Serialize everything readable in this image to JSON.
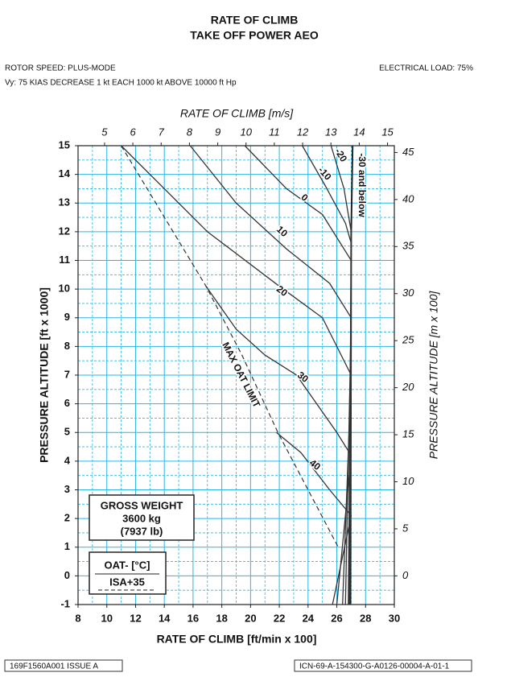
{
  "chart_data": {
    "type": "line",
    "title": "RATE OF CLIMB",
    "subtitle": "TAKE OFF POWER AEO",
    "notes": {
      "rotor": "ROTOR SPEED: PLUS-MODE",
      "electrical": "ELECTRICAL LOAD: 75%",
      "vy": "Vy: 75 KIAS DECREASE 1 kt EACH 1000 kt ABOVE 10000 ft Hp"
    },
    "xlabel": "RATE OF CLIMB [ft/min x 100]",
    "x2label": "RATE OF CLIMB [m/s]",
    "ylabel": "PRESSURE ALTITUDE [ft x 1000]",
    "y2label": "PRESSURE ALTITUDE [m x 100]",
    "xlim": [
      8,
      30
    ],
    "xticks": [
      8,
      10,
      12,
      14,
      16,
      18,
      20,
      22,
      24,
      26,
      28,
      30
    ],
    "x2lim": [
      4.064,
      15.24
    ],
    "x2ticks": [
      5,
      6,
      7,
      8,
      9,
      10,
      11,
      12,
      13,
      14,
      15
    ],
    "ylim": [
      -1,
      15
    ],
    "yticks": [
      -1,
      0,
      1,
      2,
      3,
      4,
      5,
      6,
      7,
      8,
      9,
      10,
      11,
      12,
      13,
      14,
      15
    ],
    "y2lim": [
      -3.048,
      45.72
    ],
    "y2ticks": [
      0,
      5,
      10,
      15,
      20,
      25,
      30,
      35,
      40,
      45
    ],
    "grid": true,
    "grid_color": "#29b6e6",
    "minor_divisions": 2,
    "series": [
      {
        "name": "-30 and below",
        "color": "#222222",
        "x": [
          27.1,
          27.0,
          26.95
        ],
        "y": [
          15,
          12,
          -1
        ]
      },
      {
        "name": "-20",
        "color": "#333333",
        "x": [
          25.6,
          26.5,
          27.0,
          26.9
        ],
        "y": [
          15,
          13.5,
          12.0,
          -1
        ]
      },
      {
        "name": "-10",
        "color": "#333333",
        "x": [
          23.6,
          25.2,
          26.6,
          27.0,
          26.85
        ],
        "y": [
          15,
          13.6,
          12.3,
          11.6,
          -1
        ]
      },
      {
        "name": "0",
        "color": "#333333",
        "x": [
          19.6,
          22.5,
          25.0,
          27.0,
          26.8
        ],
        "y": [
          15,
          13.5,
          12.6,
          11.0,
          -1
        ]
      },
      {
        "name": "10",
        "color": "#333333",
        "x": [
          15.8,
          19.0,
          22.5,
          25.5,
          27.0,
          26.6
        ],
        "y": [
          15,
          13.0,
          11.4,
          10.2,
          9.0,
          -1
        ]
      },
      {
        "name": "20",
        "color": "#333333",
        "x": [
          11.0,
          14.0,
          17.0,
          22.0,
          25.0,
          27.0,
          26.4
        ],
        "y": [
          15,
          13.5,
          12.0,
          10.1,
          9.0,
          7.0,
          -1
        ]
      },
      {
        "name": "30",
        "color": "#333333",
        "x": [
          16.9,
          19.0,
          21.0,
          23.2,
          26.0,
          27.0,
          26.0
        ],
        "y": [
          10.1,
          8.6,
          7.7,
          7.0,
          5.0,
          4.2,
          -1
        ]
      },
      {
        "name": "40",
        "color": "#333333",
        "x": [
          21.8,
          23.5,
          25.5,
          27.0,
          25.7
        ],
        "y": [
          5.0,
          4.3,
          3.0,
          2.1,
          -1
        ]
      }
    ],
    "limit_line": {
      "label": "MAX OAT LIMIT",
      "color": "#333333",
      "x": [
        11.0,
        16.9,
        19.4,
        21.9,
        26.1
      ],
      "y": [
        15,
        10.1,
        7.7,
        5.0,
        1.0
      ]
    },
    "weight_box": {
      "title": "GROSS WEIGHT",
      "kg": "3600 kg",
      "lb": "(7937 lb)"
    },
    "oat_box": {
      "title": "OAT- [°C]",
      "isa": "ISA+35"
    },
    "footer": {
      "left": "169F1560A001 ISSUE A",
      "right": "ICN-69-A-154300-G-A0126-00004-A-01-1"
    }
  }
}
